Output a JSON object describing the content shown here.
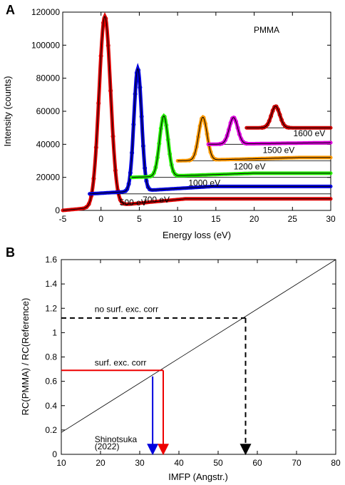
{
  "chart_data": [
    {
      "panel_label": "A",
      "type": "scatter",
      "annotation": "PMMA",
      "xlabel": "Energy loss (eV)",
      "ylabel": "Intensity (counts)",
      "xlim": [
        -5,
        30
      ],
      "ylim": [
        0,
        120000
      ],
      "xticks": [
        -5,
        0,
        5,
        10,
        15,
        20,
        25,
        30
      ],
      "yticks": [
        0,
        20000,
        40000,
        60000,
        80000,
        100000,
        120000
      ],
      "series": [
        {
          "name": "500 eV",
          "color": "#dd0000",
          "offset": 0,
          "peak_x": 0.5,
          "peak_y": 115000,
          "sigma": 0.75,
          "bg_start": -5,
          "bg_max": 7000,
          "label_x": 4.2
        },
        {
          "name": "700 eV",
          "color": "#0000dd",
          "offset": 10000,
          "peak_x": 4.8,
          "peak_y": 84000,
          "sigma": 0.5,
          "bg_start": -1.5,
          "bg_max": 4500,
          "label_x": 7.2
        },
        {
          "name": "1000 eV",
          "color": "#22ee00",
          "offset": 20000,
          "peak_x": 8.2,
          "peak_y": 56500,
          "sigma": 0.55,
          "bg_start": 4,
          "bg_max": 2500,
          "label_x": 13.5
        },
        {
          "name": "1200 eV",
          "color": "#ff9900",
          "offset": 30000,
          "peak_x": 13.3,
          "peak_y": 56000,
          "sigma": 0.55,
          "bg_start": 10,
          "bg_max": 2000,
          "label_x": 19.4
        },
        {
          "name": "1500 eV",
          "color": "#dd00dd",
          "offset": 40000,
          "peak_x": 17.3,
          "peak_y": 56000,
          "sigma": 0.55,
          "bg_start": 14,
          "bg_max": 1000,
          "label_x": 23.2
        },
        {
          "name": "1600 eV",
          "color": "#cc0000",
          "offset": 50000,
          "peak_x": 22.8,
          "peak_y": 63000,
          "sigma": 0.55,
          "bg_start": 19,
          "bg_max": 0,
          "label_x": 27.2
        }
      ]
    },
    {
      "panel_label": "B",
      "type": "line",
      "xlabel": "IMFP (Angstr.)",
      "ylabel": "RC(PMMA) / RC(Reference)",
      "xlim": [
        10,
        80
      ],
      "ylim": [
        0,
        1.6
      ],
      "xticks": [
        10,
        20,
        30,
        40,
        50,
        60,
        70,
        80
      ],
      "yticks": [
        0,
        0.2,
        0.4,
        0.6,
        0.8,
        1,
        1.2,
        1.4,
        1.6
      ],
      "ytick_labels": [
        "0",
        "0.2",
        "0.4",
        "0.6",
        "0.8",
        "1",
        "1.2",
        "1.4",
        "1.6"
      ],
      "line": {
        "x": [
          10,
          80
        ],
        "y": [
          0.18,
          1.6
        ]
      },
      "annotations": [
        {
          "text": "no surf. exc. corr",
          "x": 18.5,
          "y": 1.17
        },
        {
          "text": "surf. exc. corr",
          "x": 18.5,
          "y": 0.73
        },
        {
          "text": "Shinotsuka",
          "x": 18.5,
          "y": 0.1
        },
        {
          "text": "(2022)",
          "x": 18.5,
          "y": 0.04
        }
      ],
      "guides": [
        {
          "style": "dashed",
          "color": "#000000",
          "y": 1.12,
          "x": 57
        },
        {
          "style": "solid",
          "color": "#ee0000",
          "y": 0.69,
          "x": 36
        }
      ],
      "arrows": [
        {
          "color": "#0000dd",
          "x": 33.3,
          "y_from": 0.64
        },
        {
          "color": "#ee0000",
          "x": 36,
          "y_from": 0.69
        },
        {
          "color": "#000000",
          "x": 57,
          "y_from": 1.12,
          "style": "dashed"
        }
      ]
    }
  ]
}
